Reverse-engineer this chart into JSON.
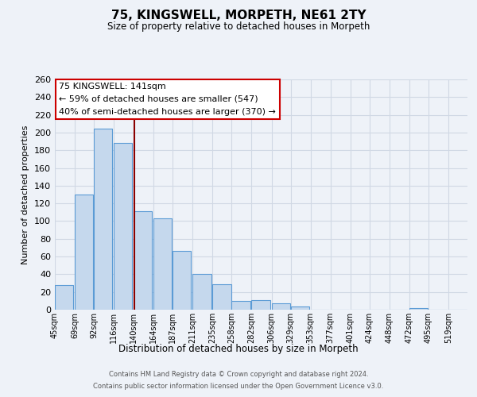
{
  "title": "75, KINGSWELL, MORPETH, NE61 2TY",
  "subtitle": "Size of property relative to detached houses in Morpeth",
  "xlabel": "Distribution of detached houses by size in Morpeth",
  "ylabel": "Number of detached properties",
  "footnote1": "Contains HM Land Registry data © Crown copyright and database right 2024.",
  "footnote2": "Contains public sector information licensed under the Open Government Licence v3.0.",
  "bins": [
    45,
    69,
    92,
    116,
    140,
    164,
    187,
    211,
    235,
    258,
    282,
    306,
    329,
    353,
    377,
    401,
    424,
    448,
    472,
    495,
    519
  ],
  "bin_labels": [
    "45sqm",
    "69sqm",
    "92sqm",
    "116sqm",
    "140sqm",
    "164sqm",
    "187sqm",
    "211sqm",
    "235sqm",
    "258sqm",
    "282sqm",
    "306sqm",
    "329sqm",
    "353sqm",
    "377sqm",
    "401sqm",
    "424sqm",
    "448sqm",
    "472sqm",
    "495sqm",
    "519sqm"
  ],
  "values": [
    28,
    130,
    204,
    188,
    111,
    103,
    66,
    40,
    29,
    10,
    11,
    7,
    4,
    0,
    0,
    0,
    0,
    0,
    2,
    0,
    0
  ],
  "bar_color": "#c5d8ed",
  "bar_edge_color": "#5b9bd5",
  "grid_color": "#d0d8e4",
  "bg_color": "#eef2f8",
  "marker_value": 141,
  "marker_color": "#8b0000",
  "annotation_title": "75 KINGSWELL: 141sqm",
  "annotation_line1": "← 59% of detached houses are smaller (547)",
  "annotation_line2": "40% of semi-detached houses are larger (370) →",
  "annotation_box_color": "#ffffff",
  "annotation_border_color": "#cc0000",
  "ylim": [
    0,
    260
  ],
  "yticks": [
    0,
    20,
    40,
    60,
    80,
    100,
    120,
    140,
    160,
    180,
    200,
    220,
    240,
    260
  ]
}
